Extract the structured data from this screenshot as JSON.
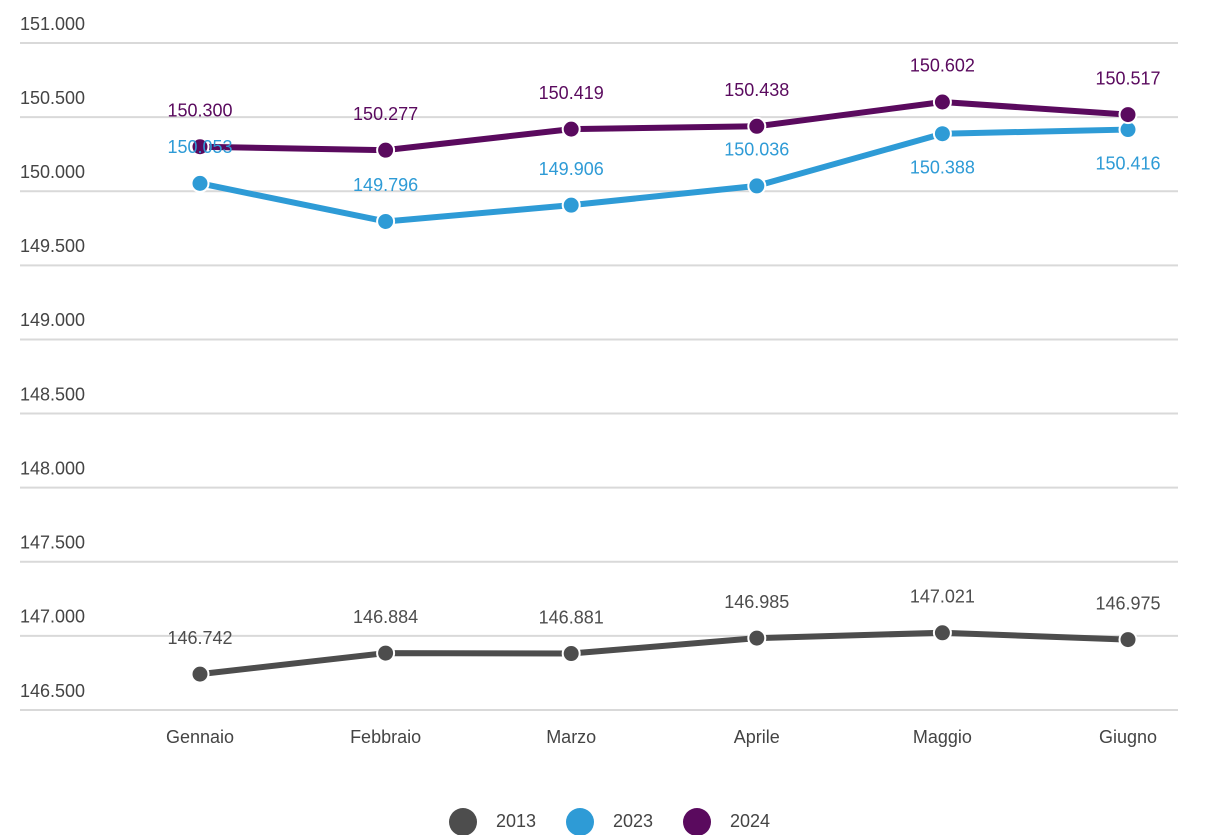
{
  "chart_data": {
    "type": "line",
    "categories": [
      "Gennaio",
      "Febbraio",
      "Marzo",
      "Aprile",
      "Maggio",
      "Giugno"
    ],
    "series": [
      {
        "name": "2013",
        "color": "#4d4d4d",
        "values": [
          146742,
          146884,
          146881,
          146985,
          147021,
          146975
        ],
        "value_labels": [
          "146.742",
          "146.884",
          "146.881",
          "146.985",
          "147.021",
          "146.975"
        ]
      },
      {
        "name": "2023",
        "color": "#2e9bd6",
        "values": [
          150053,
          149796,
          149906,
          150036,
          150388,
          150416
        ],
        "value_labels": [
          "150.053",
          "149.796",
          "149.906",
          "150.036",
          "150.388",
          "150.416"
        ]
      },
      {
        "name": "2024",
        "color": "#5a0a5e",
        "values": [
          150300,
          150277,
          150419,
          150438,
          150602,
          150517
        ],
        "value_labels": [
          "150.300",
          "150.277",
          "150.419",
          "150.438",
          "150.602",
          "150.517"
        ]
      }
    ],
    "ylim": [
      146500,
      151000
    ],
    "yticks": [
      {
        "value": 146500,
        "label": "146.500"
      },
      {
        "value": 147000,
        "label": "147.000"
      },
      {
        "value": 147500,
        "label": "147.500"
      },
      {
        "value": 148000,
        "label": "148.000"
      },
      {
        "value": 148500,
        "label": "148.500"
      },
      {
        "value": 149000,
        "label": "149.000"
      },
      {
        "value": 149500,
        "label": "149.500"
      },
      {
        "value": 150000,
        "label": "150.000"
      },
      {
        "value": 150500,
        "label": "150.500"
      },
      {
        "value": 151000,
        "label": "151.000"
      }
    ],
    "grid": true,
    "legend": "bottom"
  }
}
